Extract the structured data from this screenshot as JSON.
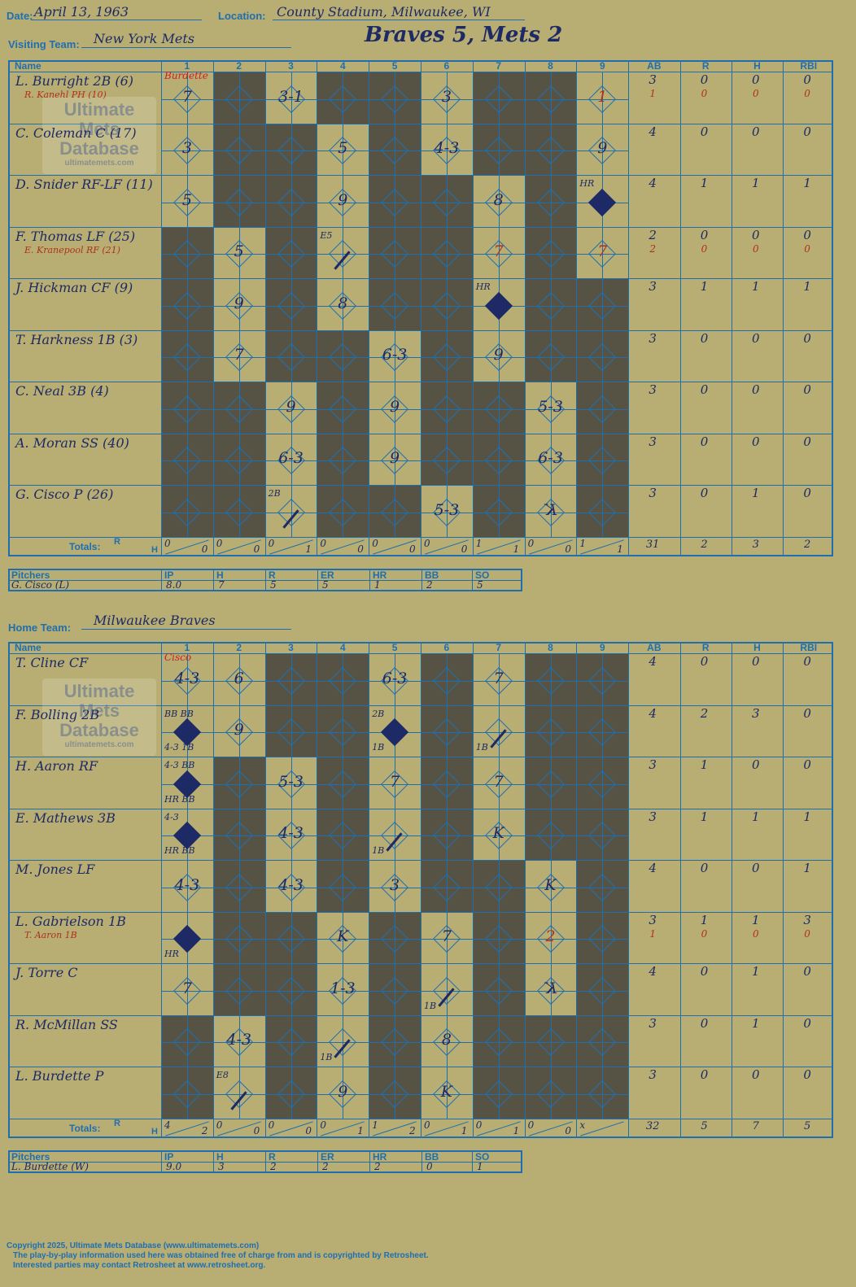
{
  "header": {
    "date_label": "Date:",
    "date_value": "April 13, 1963",
    "location_label": "Location:",
    "location_value": "County Stadium, Milwaukee, WI",
    "visiting_label": "Visiting Team:",
    "visiting_value": "New York Mets",
    "result_title": "Braves 5, Mets 2",
    "home_label": "Home Team:",
    "home_value": "Milwaukee Braves"
  },
  "columns": {
    "name": "Name",
    "innings": [
      "1",
      "2",
      "3",
      "4",
      "5",
      "6",
      "7",
      "8",
      "9"
    ],
    "stats": [
      "AB",
      "R",
      "H",
      "RBI"
    ]
  },
  "totals_label": "Totals:",
  "totals_r": "R",
  "totals_h": "H",
  "logo": {
    "line1": "Ultimate",
    "line2": "Mets",
    "line3": "Database",
    "url": "ultimatemets.com"
  },
  "visitors": {
    "opp_pitcher_top": "Burdette",
    "players": [
      {
        "name": "L. Burright 2B (6)",
        "sub": "R. Kanehl PH (10)",
        "ab": "3",
        "r": "0",
        "h": "0",
        "rbi": "0",
        "sub_ab": "1",
        "sub_r": "0",
        "sub_h": "0",
        "sub_rbi": "0"
      },
      {
        "name": "C. Coleman C (17)",
        "ab": "4",
        "r": "0",
        "h": "0",
        "rbi": "0"
      },
      {
        "name": "D. Snider RF-LF (11)",
        "ab": "4",
        "r": "1",
        "h": "1",
        "rbi": "1"
      },
      {
        "name": "F. Thomas LF (25)",
        "sub": "E. Kranepool RF (21)",
        "ab": "2",
        "r": "0",
        "h": "0",
        "rbi": "0",
        "sub_ab": "2",
        "sub_r": "0",
        "sub_h": "0",
        "sub_rbi": "0"
      },
      {
        "name": "J. Hickman CF (9)",
        "ab": "3",
        "r": "1",
        "h": "1",
        "rbi": "1"
      },
      {
        "name": "T. Harkness 1B (3)",
        "ab": "3",
        "r": "0",
        "h": "0",
        "rbi": "0"
      },
      {
        "name": "C. Neal 3B (4)",
        "ab": "3",
        "r": "0",
        "h": "0",
        "rbi": "0"
      },
      {
        "name": "A. Moran SS (40)",
        "ab": "3",
        "r": "0",
        "h": "0",
        "rbi": "0"
      },
      {
        "name": "G. Cisco P (26)",
        "ab": "3",
        "r": "0",
        "h": "1",
        "rbi": "0"
      }
    ],
    "inning_totals": [
      [
        "0",
        "0"
      ],
      [
        "0",
        "0"
      ],
      [
        "0",
        "1"
      ],
      [
        "0",
        "0"
      ],
      [
        "0",
        "0"
      ],
      [
        "0",
        "0"
      ],
      [
        "1",
        "1"
      ],
      [
        "0",
        "0"
      ],
      [
        "1",
        "1"
      ]
    ],
    "totals": {
      "ab": "31",
      "r": "2",
      "h": "3",
      "rbi": "2"
    },
    "pitchers_label": "Pitchers",
    "pitcher_cols": [
      "IP",
      "H",
      "R",
      "ER",
      "HR",
      "BB",
      "SO"
    ],
    "pitchers": [
      {
        "name": "G. Cisco (L)",
        "ip": "8.0",
        "h": "7",
        "r": "5",
        "er": "5",
        "hr": "1",
        "bb": "2",
        "so": "5"
      }
    ]
  },
  "home": {
    "opp_pitcher_top": "Cisco",
    "players": [
      {
        "name": "T. Cline CF",
        "ab": "4",
        "r": "0",
        "h": "0",
        "rbi": "0"
      },
      {
        "name": "F. Bolling 2B",
        "ab": "4",
        "r": "2",
        "h": "3",
        "rbi": "0"
      },
      {
        "name": "H. Aaron RF",
        "ab": "3",
        "r": "1",
        "h": "0",
        "rbi": "0"
      },
      {
        "name": "E. Mathews 3B",
        "ab": "3",
        "r": "1",
        "h": "1",
        "rbi": "1"
      },
      {
        "name": "M. Jones LF",
        "ab": "4",
        "r": "0",
        "h": "0",
        "rbi": "1"
      },
      {
        "name": "L. Gabrielson 1B",
        "sub": "T. Aaron 1B",
        "ab": "3",
        "r": "1",
        "h": "1",
        "rbi": "3",
        "sub_ab": "1",
        "sub_r": "0",
        "sub_h": "0",
        "sub_rbi": "0"
      },
      {
        "name": "J. Torre C",
        "ab": "4",
        "r": "0",
        "h": "1",
        "rbi": "0"
      },
      {
        "name": "R. McMillan SS",
        "ab": "3",
        "r": "0",
        "h": "1",
        "rbi": "0"
      },
      {
        "name": "L. Burdette P",
        "ab": "3",
        "r": "0",
        "h": "0",
        "rbi": "0"
      }
    ],
    "inning_totals": [
      [
        "4",
        "2"
      ],
      [
        "0",
        "0"
      ],
      [
        "0",
        "0"
      ],
      [
        "0",
        "1"
      ],
      [
        "1",
        "2"
      ],
      [
        "0",
        "1"
      ],
      [
        "0",
        "1"
      ],
      [
        "0",
        "0"
      ],
      [
        "x",
        ""
      ]
    ],
    "totals": {
      "ab": "32",
      "r": "5",
      "h": "7",
      "rbi": "5"
    },
    "pitchers_label": "Pitchers",
    "pitcher_cols": [
      "IP",
      "H",
      "R",
      "ER",
      "HR",
      "BB",
      "SO"
    ],
    "pitchers": [
      {
        "name": "L. Burdette (W)",
        "ip": "9.0",
        "h": "3",
        "r": "2",
        "er": "2",
        "hr": "2",
        "bb": "0",
        "so": "1"
      }
    ]
  },
  "visitor_plays": [
    {
      "row": 0,
      "col": 0,
      "text": "7"
    },
    {
      "row": 0,
      "col": 2,
      "text": "3-1"
    },
    {
      "row": 0,
      "col": 5,
      "text": "3"
    },
    {
      "row": 0,
      "col": 8,
      "text": "1",
      "red": true
    },
    {
      "row": 1,
      "col": 0,
      "text": "3"
    },
    {
      "row": 1,
      "col": 3,
      "text": "5"
    },
    {
      "row": 1,
      "col": 5,
      "text": "4-3"
    },
    {
      "row": 1,
      "col": 8,
      "text": "9"
    },
    {
      "row": 2,
      "col": 0,
      "text": "5"
    },
    {
      "row": 2,
      "col": 3,
      "text": "9"
    },
    {
      "row": 2,
      "col": 6,
      "text": "8"
    },
    {
      "row": 2,
      "col": 8,
      "text": "",
      "scored": true,
      "note": "HR"
    },
    {
      "row": 3,
      "col": 1,
      "text": "5"
    },
    {
      "row": 3,
      "col": 3,
      "text": "",
      "slash": true,
      "note": "E5"
    },
    {
      "row": 3,
      "col": 6,
      "text": "7",
      "red": true
    },
    {
      "row": 3,
      "col": 8,
      "text": "7",
      "red": true
    },
    {
      "row": 4,
      "col": 1,
      "text": "9"
    },
    {
      "row": 4,
      "col": 3,
      "text": "8"
    },
    {
      "row": 4,
      "col": 6,
      "text": "",
      "scored": true,
      "note": "HR"
    },
    {
      "row": 5,
      "col": 1,
      "text": "7"
    },
    {
      "row": 5,
      "col": 4,
      "text": "6-3"
    },
    {
      "row": 5,
      "col": 6,
      "text": "9"
    },
    {
      "row": 6,
      "col": 2,
      "text": "9"
    },
    {
      "row": 6,
      "col": 4,
      "text": "9"
    },
    {
      "row": 6,
      "col": 7,
      "text": "5-3"
    },
    {
      "row": 7,
      "col": 2,
      "text": "6-3"
    },
    {
      "row": 7,
      "col": 4,
      "text": "9"
    },
    {
      "row": 7,
      "col": 7,
      "text": "6-3"
    },
    {
      "row": 8,
      "col": 2,
      "text": "",
      "slash": true,
      "note": "2B"
    },
    {
      "row": 8,
      "col": 5,
      "text": "5-3"
    },
    {
      "row": 8,
      "col": 7,
      "text": "K",
      "reverse": true
    }
  ],
  "home_plays": [
    {
      "row": 0,
      "col": 0,
      "text": "4-3"
    },
    {
      "row": 0,
      "col": 1,
      "text": "6"
    },
    {
      "row": 0,
      "col": 4,
      "text": "6-3"
    },
    {
      "row": 0,
      "col": 6,
      "text": "7"
    },
    {
      "row": 1,
      "col": 0,
      "text": "",
      "scored": true,
      "note": "BB BB",
      "note2": "4-3 1B"
    },
    {
      "row": 1,
      "col": 1,
      "text": "9"
    },
    {
      "row": 1,
      "col": 4,
      "text": "",
      "scored": true,
      "note": "2B",
      "note2": "1B"
    },
    {
      "row": 1,
      "col": 6,
      "text": "",
      "slash": true,
      "note2": "1B"
    },
    {
      "row": 2,
      "col": 0,
      "text": "",
      "scored": true,
      "note": "4-3 BB",
      "note2": "HR BB"
    },
    {
      "row": 2,
      "col": 2,
      "text": "5-3"
    },
    {
      "row": 2,
      "col": 4,
      "text": "7"
    },
    {
      "row": 2,
      "col": 6,
      "text": "7"
    },
    {
      "row": 3,
      "col": 0,
      "text": "",
      "scored": true,
      "note": "4-3",
      "note2": "HR BB"
    },
    {
      "row": 3,
      "col": 2,
      "text": "4-3"
    },
    {
      "row": 3,
      "col": 4,
      "text": "",
      "slash": true,
      "note2": "1B"
    },
    {
      "row": 3,
      "col": 6,
      "text": "K"
    },
    {
      "row": 4,
      "col": 0,
      "text": "4-3"
    },
    {
      "row": 4,
      "col": 2,
      "text": "4-3"
    },
    {
      "row": 4,
      "col": 4,
      "text": "3"
    },
    {
      "row": 4,
      "col": 7,
      "text": "K"
    },
    {
      "row": 5,
      "col": 0,
      "text": "",
      "scored": true,
      "note2": "HR"
    },
    {
      "row": 5,
      "col": 3,
      "text": "K"
    },
    {
      "row": 5,
      "col": 5,
      "text": "7"
    },
    {
      "row": 5,
      "col": 7,
      "text": "2",
      "red": true
    },
    {
      "row": 6,
      "col": 0,
      "text": "7"
    },
    {
      "row": 6,
      "col": 3,
      "text": "1-3"
    },
    {
      "row": 6,
      "col": 5,
      "text": "",
      "slash": true,
      "note2": "1B"
    },
    {
      "row": 6,
      "col": 7,
      "text": "K",
      "reverse": true
    },
    {
      "row": 7,
      "col": 1,
      "text": "4-3"
    },
    {
      "row": 7,
      "col": 3,
      "text": "",
      "slash": true,
      "note2": "1B"
    },
    {
      "row": 7,
      "col": 5,
      "text": "8"
    },
    {
      "row": 8,
      "col": 1,
      "text": "",
      "slash": true,
      "note": "E8"
    },
    {
      "row": 8,
      "col": 3,
      "text": "9"
    },
    {
      "row": 8,
      "col": 5,
      "text": "K"
    }
  ],
  "footer": {
    "line1": "Copyright 2025, Ultimate Mets Database (www.ultimatemets.com)",
    "line2": "The play-by-play information used here was obtained free of charge from and is copyrighted by Retrosheet.",
    "line3": "Interested parties may contact Retrosheet at www.retrosheet.org."
  }
}
